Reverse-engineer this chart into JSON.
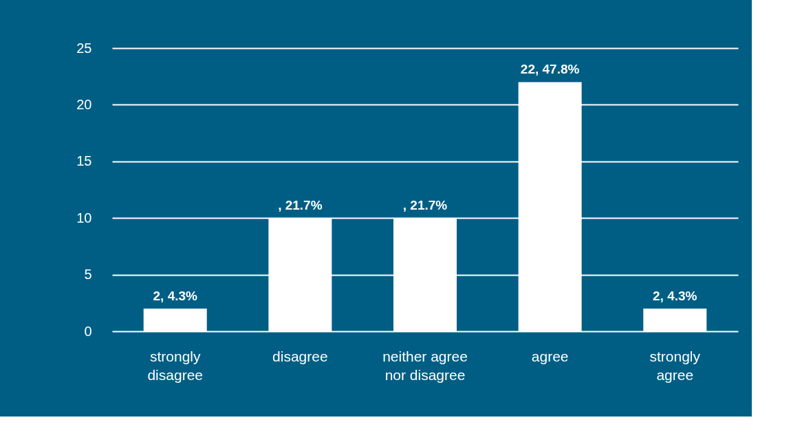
{
  "chart_data": {
    "type": "bar",
    "categories": [
      "strongly disagree",
      "disagree",
      "neither agree nor disagree",
      "agree",
      "strongly agree"
    ],
    "values": [
      2,
      10,
      10,
      22,
      2
    ],
    "annotations": [
      {
        "text": "2, 4.3%",
        "x": "strongly disagree",
        "y": 2
      },
      {
        "text": ", 21.7%",
        "x": "disagree",
        "y": 10
      },
      {
        "text": ", 21.7%",
        "x": "neither agree nor disagree",
        "y": 10
      },
      {
        "text": "22, 47.8%",
        "x": "agree",
        "y": 22
      },
      {
        "text": "2, 4.3%",
        "x": "strongly agree",
        "y": 2
      }
    ],
    "color": "#ffffff",
    "ylim": [
      0,
      25
    ],
    "yticks": [
      0,
      5,
      10,
      15,
      20,
      25
    ],
    "grid": "y"
  }
}
